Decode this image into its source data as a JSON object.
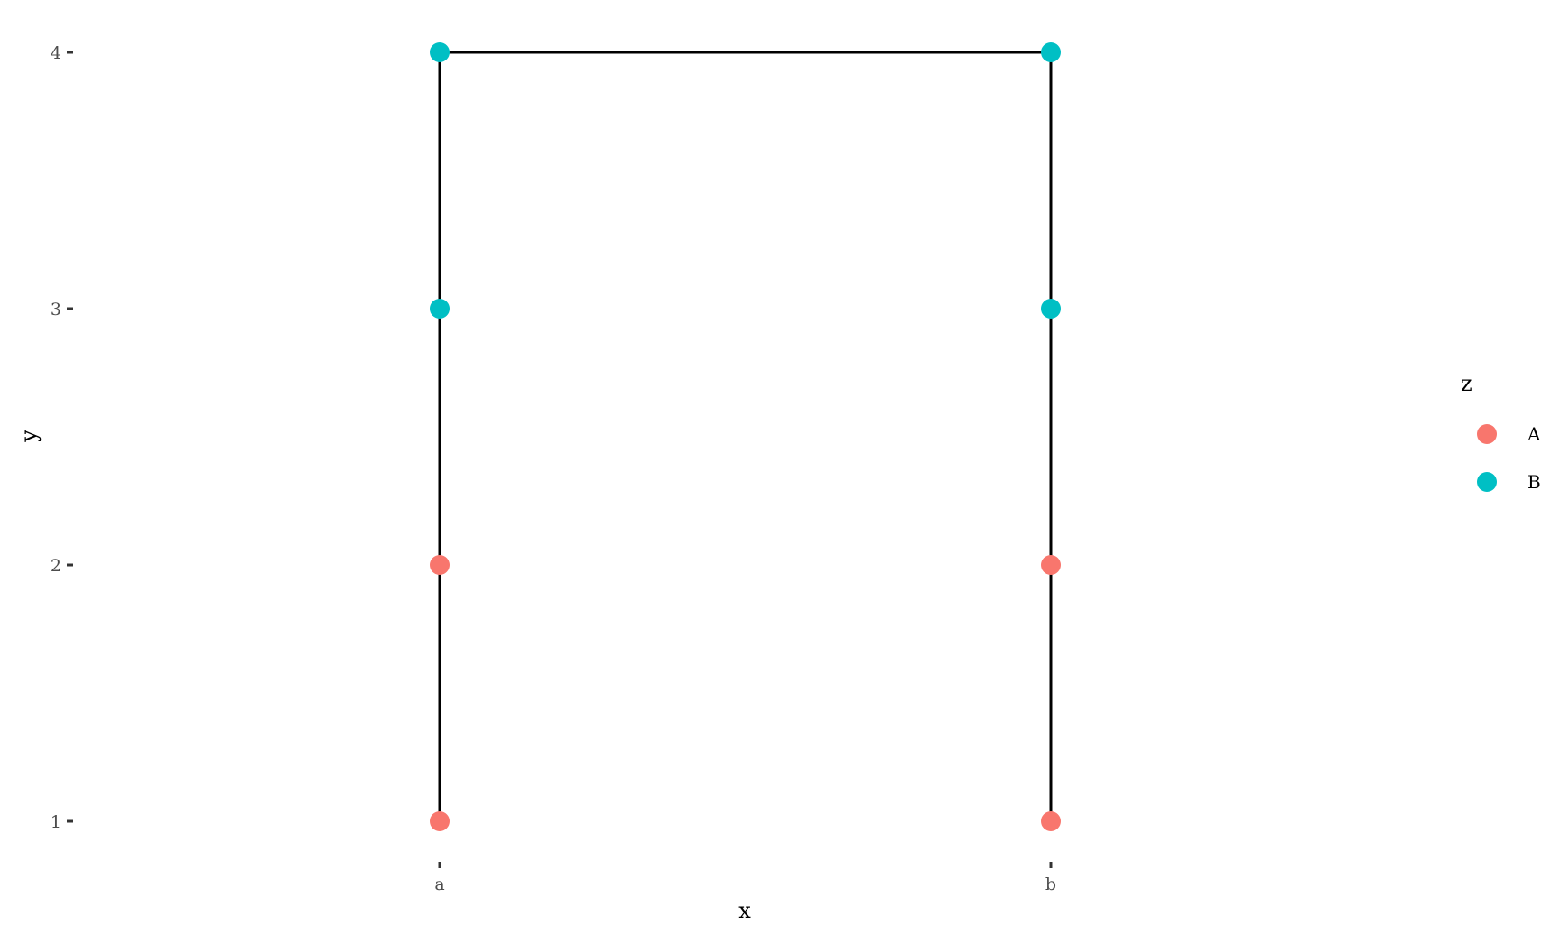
{
  "chart_data": {
    "type": "scatter",
    "title": "",
    "xlabel": "x",
    "ylabel": "y",
    "x_categories": [
      "a",
      "b"
    ],
    "y_ticks": [
      1,
      2,
      3,
      4
    ],
    "ylim": [
      1,
      4
    ],
    "grid": false,
    "legend": {
      "title": "z",
      "placement": "right",
      "entries": [
        {
          "label": "A",
          "color": "#F8766D"
        },
        {
          "label": "B",
          "color": "#00BFC4"
        }
      ]
    },
    "series": [
      {
        "name": "A",
        "color": "#F8766D",
        "points": [
          {
            "x": "a",
            "y": 1
          },
          {
            "x": "a",
            "y": 2
          },
          {
            "x": "b",
            "y": 1
          },
          {
            "x": "b",
            "y": 2
          }
        ]
      },
      {
        "name": "B",
        "color": "#00BFC4",
        "points": [
          {
            "x": "a",
            "y": 3
          },
          {
            "x": "a",
            "y": 4
          },
          {
            "x": "b",
            "y": 3
          },
          {
            "x": "b",
            "y": 4
          }
        ]
      }
    ],
    "path": {
      "color": "#000000",
      "points": [
        {
          "x": "a",
          "y": 1
        },
        {
          "x": "a",
          "y": 4
        },
        {
          "x": "b",
          "y": 4
        },
        {
          "x": "b",
          "y": 1
        }
      ]
    }
  }
}
